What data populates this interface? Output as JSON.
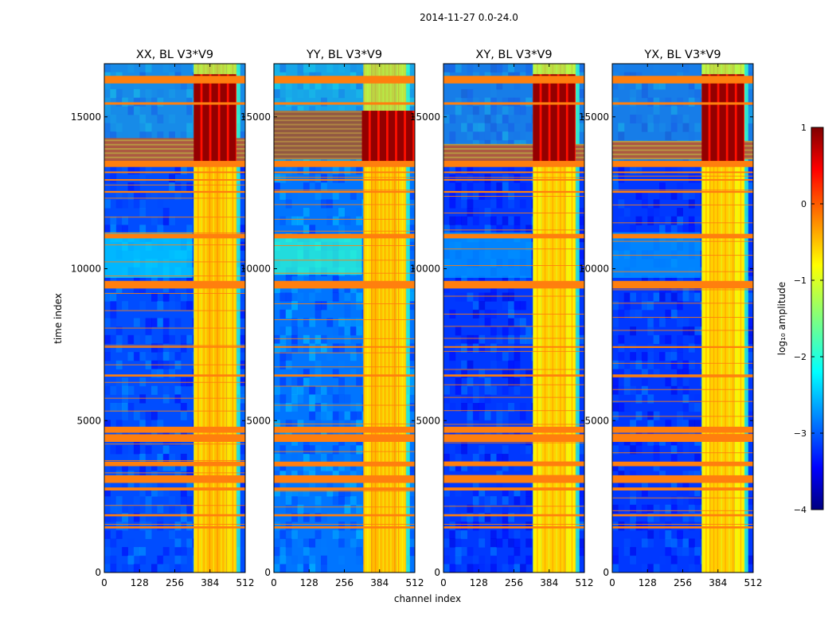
{
  "figure": {
    "suptitle": "2014-11-27 0.0-24.0",
    "colormap": "jet"
  },
  "chart_data": [
    {
      "type": "heatmap",
      "title": "XX, BL V3*V9",
      "polarization": "XX",
      "baseline": "V3*V9",
      "xlabel": "channel index",
      "ylabel": "time index",
      "xlim": [
        0,
        512
      ],
      "ylim": [
        0,
        16750
      ],
      "xticks": [
        0,
        128,
        256,
        384,
        512
      ],
      "yticks": [
        0,
        5000,
        10000,
        15000
      ],
      "background_log10": -3,
      "band_channels": [
        [
          325,
          355
        ],
        [
          355,
          445
        ],
        [
          445,
          480
        ]
      ],
      "band_log10": -0.6,
      "hot_region": {
        "time": [
          13500,
          16400
        ],
        "channels": [
          325,
          480
        ],
        "log10": 0.9
      },
      "bright_rows": [
        {
          "time": [
            13500,
            14300
          ],
          "log10": 0.5
        }
      ],
      "sidelobe_patch": {
        "time": [
          9700,
          11200
        ],
        "channels": [
          0,
          320
        ],
        "log10": -2.3
      },
      "flagged_rows": [
        [
          16100,
          16350
        ],
        [
          15400,
          15480
        ],
        [
          13350,
          13550
        ],
        [
          11000,
          11150
        ],
        [
          9350,
          9600
        ],
        [
          4600,
          4800
        ],
        [
          4300,
          4550
        ],
        [
          3500,
          3650
        ],
        [
          2950,
          3200
        ],
        [
          2700,
          2800
        ],
        [
          1850,
          1920
        ],
        [
          1450,
          1520
        ],
        [
          6450,
          6520
        ],
        [
          7400,
          7450
        ],
        [
          12500,
          12560
        ],
        [
          12900,
          12950
        ],
        [
          13150,
          13200
        ]
      ]
    },
    {
      "type": "heatmap",
      "title": "YY, BL V3*V9",
      "polarization": "YY",
      "baseline": "V3*V9",
      "xlabel": "channel index",
      "ylabel": "",
      "xlim": [
        0,
        512
      ],
      "ylim": [
        0,
        16750
      ],
      "xticks": [
        0,
        128,
        256,
        384,
        512
      ],
      "yticks": [
        0,
        5000,
        10000,
        15000
      ],
      "background_log10": -2.8,
      "band_channels": [
        [
          325,
          355
        ],
        [
          355,
          445
        ],
        [
          445,
          480
        ]
      ],
      "band_log10": -0.6,
      "hot_region": {
        "time": [
          13500,
          15200
        ],
        "channels": [
          320,
          512
        ],
        "log10": 0.9
      },
      "bright_rows": [
        {
          "time": [
            13600,
            15200
          ],
          "log10": 0.7
        }
      ],
      "sidelobe_patch": {
        "time": [
          9800,
          11100
        ],
        "channels": [
          0,
          320
        ],
        "log10": -1.9
      },
      "flagged_rows": [
        [
          16100,
          16350
        ],
        [
          15400,
          15480
        ],
        [
          13350,
          13550
        ],
        [
          11000,
          11150
        ],
        [
          9350,
          9600
        ],
        [
          4600,
          4800
        ],
        [
          4300,
          4550
        ],
        [
          3500,
          3650
        ],
        [
          2950,
          3200
        ],
        [
          2700,
          2800
        ],
        [
          1850,
          1920
        ],
        [
          1450,
          1520
        ],
        [
          6450,
          6520
        ],
        [
          7400,
          7450
        ],
        [
          12500,
          12560
        ],
        [
          12900,
          12950
        ],
        [
          13150,
          13200
        ]
      ]
    },
    {
      "type": "heatmap",
      "title": "XY, BL V3*V9",
      "polarization": "XY",
      "baseline": "V3*V9",
      "xlabel": "",
      "ylabel": "",
      "xlim": [
        0,
        512
      ],
      "ylim": [
        0,
        16750
      ],
      "xticks": [
        0,
        128,
        256,
        384,
        512
      ],
      "yticks": [
        0,
        5000,
        10000,
        15000
      ],
      "background_log10": -3.1,
      "band_channels": [
        [
          325,
          355
        ],
        [
          355,
          445
        ],
        [
          445,
          480
        ]
      ],
      "band_log10": -0.7,
      "hot_region": {
        "time": [
          13500,
          16400
        ],
        "channels": [
          325,
          480
        ],
        "log10": 0.9
      },
      "bright_rows": [
        {
          "time": [
            13500,
            14100
          ],
          "log10": 0.5
        }
      ],
      "sidelobe_patch": {
        "time": [
          9700,
          11200
        ],
        "channels": [
          0,
          320
        ],
        "log10": -2.6
      },
      "flagged_rows": [
        [
          16100,
          16350
        ],
        [
          15400,
          15480
        ],
        [
          13350,
          13550
        ],
        [
          11000,
          11150
        ],
        [
          9350,
          9600
        ],
        [
          4600,
          4800
        ],
        [
          4300,
          4550
        ],
        [
          3500,
          3650
        ],
        [
          2950,
          3200
        ],
        [
          2700,
          2800
        ],
        [
          1850,
          1920
        ],
        [
          1450,
          1520
        ],
        [
          6450,
          6520
        ],
        [
          7400,
          7450
        ],
        [
          12500,
          12560
        ],
        [
          12900,
          12950
        ],
        [
          13150,
          13200
        ]
      ]
    },
    {
      "type": "heatmap",
      "title": "YX, BL V3*V9",
      "polarization": "YX",
      "baseline": "V3*V9",
      "xlabel": "",
      "ylabel": "",
      "xlim": [
        0,
        512
      ],
      "ylim": [
        0,
        16750
      ],
      "xticks": [
        0,
        128,
        256,
        384,
        512
      ],
      "yticks": [
        0,
        5000,
        10000,
        15000
      ],
      "background_log10": -3.1,
      "band_channels": [
        [
          325,
          355
        ],
        [
          355,
          445
        ],
        [
          445,
          480
        ]
      ],
      "band_log10": -0.7,
      "hot_region": {
        "time": [
          13500,
          16400
        ],
        "channels": [
          325,
          480
        ],
        "log10": 0.9
      },
      "bright_rows": [
        {
          "time": [
            13600,
            14200
          ],
          "log10": 0.5
        }
      ],
      "sidelobe_patch": {
        "time": [
          9700,
          11200
        ],
        "channels": [
          0,
          320
        ],
        "log10": -2.6
      },
      "flagged_rows": [
        [
          16100,
          16350
        ],
        [
          15400,
          15480
        ],
        [
          13350,
          13550
        ],
        [
          11000,
          11150
        ],
        [
          9350,
          9600
        ],
        [
          4600,
          4800
        ],
        [
          4300,
          4550
        ],
        [
          3500,
          3650
        ],
        [
          2950,
          3200
        ],
        [
          2700,
          2800
        ],
        [
          1850,
          1920
        ],
        [
          1450,
          1520
        ],
        [
          6450,
          6520
        ],
        [
          7400,
          7450
        ],
        [
          12500,
          12560
        ],
        [
          12900,
          12950
        ],
        [
          13150,
          13200
        ]
      ]
    }
  ],
  "colorbar": {
    "label": "log₁₀ amplitude",
    "range": [
      -4,
      1
    ],
    "ticks": [
      1,
      0,
      -1,
      -2,
      -3,
      -4
    ],
    "tick_labels": [
      "1",
      "0",
      "−1",
      "−2",
      "−3",
      "−4"
    ],
    "flag_color": "#ff7f0e"
  }
}
